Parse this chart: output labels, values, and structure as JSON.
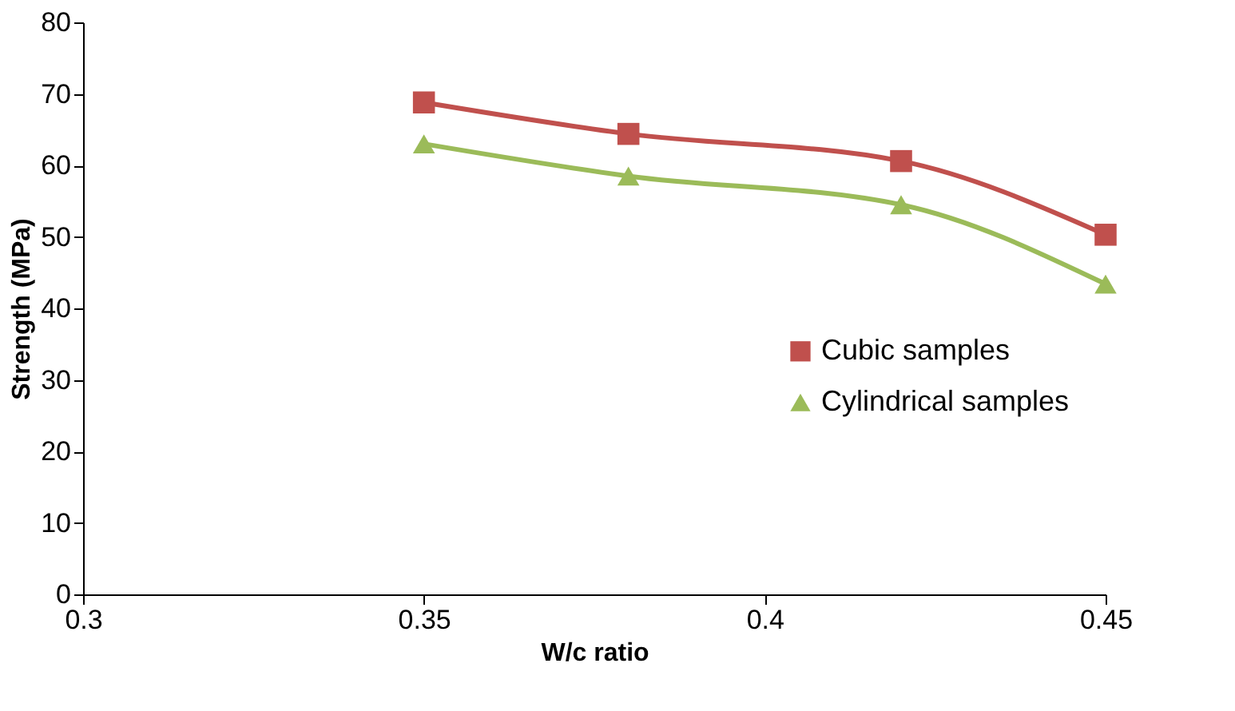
{
  "chart_data": {
    "type": "line",
    "xlabel": "W/c ratio",
    "ylabel": "Strength (MPa)",
    "x": [
      0.35,
      0.38,
      0.42,
      0.45
    ],
    "series": [
      {
        "name": "Cubic samples",
        "color": "#c0504d",
        "marker": "square",
        "values": [
          68.8,
          64.4,
          60.6,
          50.3
        ]
      },
      {
        "name": "Cylindrical samples",
        "color": "#9bbb59",
        "marker": "triangle",
        "values": [
          63.0,
          58.5,
          54.5,
          43.4
        ]
      }
    ],
    "xlim": [
      0.3,
      0.45
    ],
    "xticks": [
      {
        "value": 0.3,
        "label": "0.3"
      },
      {
        "value": 0.35,
        "label": "0.35"
      },
      {
        "value": 0.4,
        "label": "0.4"
      },
      {
        "value": 0.45,
        "label": "0.45"
      }
    ],
    "ylim": [
      0,
      80
    ],
    "yticks": [
      0,
      10,
      20,
      30,
      40,
      50,
      60,
      70,
      80
    ],
    "grid": false,
    "legend": "right",
    "line_style": "solid"
  }
}
